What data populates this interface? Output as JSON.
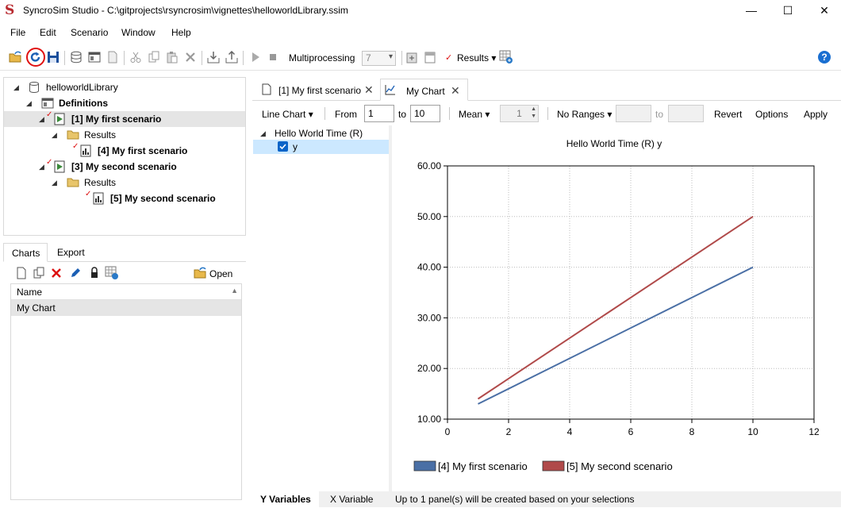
{
  "window": {
    "app_logo": "S",
    "title": "SyncroSim Studio - C:\\gitprojects\\rsyncrosim\\vignettes\\helloworldLibrary.ssim",
    "minimize": "—",
    "maximize": "☐",
    "close": "✕"
  },
  "menu": [
    "File",
    "Edit",
    "Scenario",
    "Window",
    "Help"
  ],
  "toolbar": {
    "multiprocessing_label": "Multiprocessing",
    "multiprocessing_value": "7",
    "results_label": "Results",
    "help_label": "?"
  },
  "library_tree": {
    "root": "helloworldLibrary",
    "definitions": "Definitions",
    "scenario1": "[1] My first scenario",
    "results1": "Results",
    "result1": "[4] My first scenario",
    "scenario2": "[3] My second scenario",
    "results2": "Results",
    "result2": "[5] My second scenario"
  },
  "lower_panel": {
    "tabs": [
      "Charts",
      "Export"
    ],
    "open_label": "Open",
    "column_header": "Name",
    "rows": [
      "My Chart"
    ]
  },
  "doc_tabs": [
    {
      "label": "[1] My first scenario"
    },
    {
      "label": "My Chart"
    }
  ],
  "chart_toolbar": {
    "chart_type": "Line Chart",
    "from_label": "From",
    "from_value": "1",
    "to_label": "to",
    "to_value": "10",
    "aggregation": "Mean",
    "spin_value": "1",
    "ranges": "No Ranges",
    "ranges_to": "to",
    "revert": "Revert",
    "options": "Options",
    "apply": "Apply"
  },
  "variables": {
    "group": "Hello World Time (R)",
    "item": "y",
    "item_checked": true
  },
  "bottom_bar": {
    "tabs": [
      "Y Variables",
      "X Variable"
    ],
    "status": "Up to 1 panel(s) will be created based on your selections"
  },
  "chart_data": {
    "type": "line",
    "title": "Hello World Time (R) y",
    "xlabel": "",
    "ylabel": "",
    "xlim": [
      0,
      12
    ],
    "ylim": [
      10,
      60
    ],
    "xticks": [
      0,
      2,
      4,
      6,
      8,
      10,
      12
    ],
    "yticks": [
      10,
      20,
      30,
      40,
      50,
      60
    ],
    "ytick_labels": [
      "10.00",
      "20.00",
      "30.00",
      "40.00",
      "50.00",
      "60.00"
    ],
    "grid": true,
    "legend_position": "bottom",
    "series": [
      {
        "name": "[4] My first scenario",
        "color": "#4a6fa5",
        "x": [
          1,
          10
        ],
        "y": [
          13,
          40
        ]
      },
      {
        "name": "[5] My second scenario",
        "color": "#b04a4a",
        "x": [
          1,
          10
        ],
        "y": [
          14,
          50
        ]
      }
    ]
  }
}
